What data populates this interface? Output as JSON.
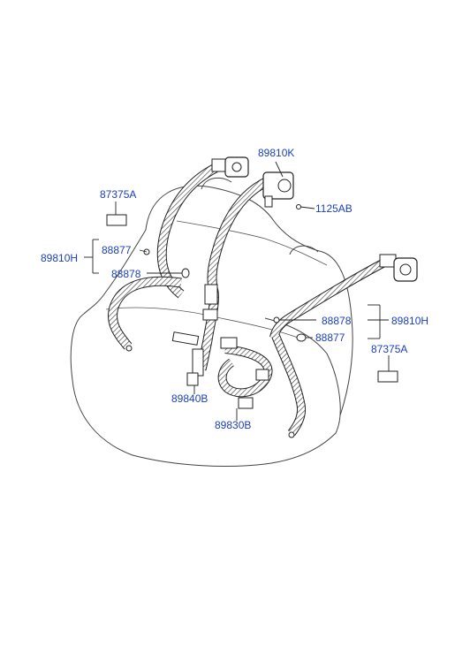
{
  "diagram": {
    "labels": {
      "p89810K": "89810K",
      "p1125AB": "1125AB",
      "p87375A_left": "87375A",
      "p88877_left": "88877",
      "p89810H_left": "89810H",
      "p88878_left": "88878",
      "p88878_right": "88878",
      "p89810H_right": "89810H",
      "p88877_right": "88877",
      "p87375A_right": "87375A",
      "p89840B": "89840B",
      "p89830B": "89830B"
    },
    "colors": {
      "label": "#1a3fc0",
      "line": "#222222",
      "background": "#ffffff"
    }
  }
}
